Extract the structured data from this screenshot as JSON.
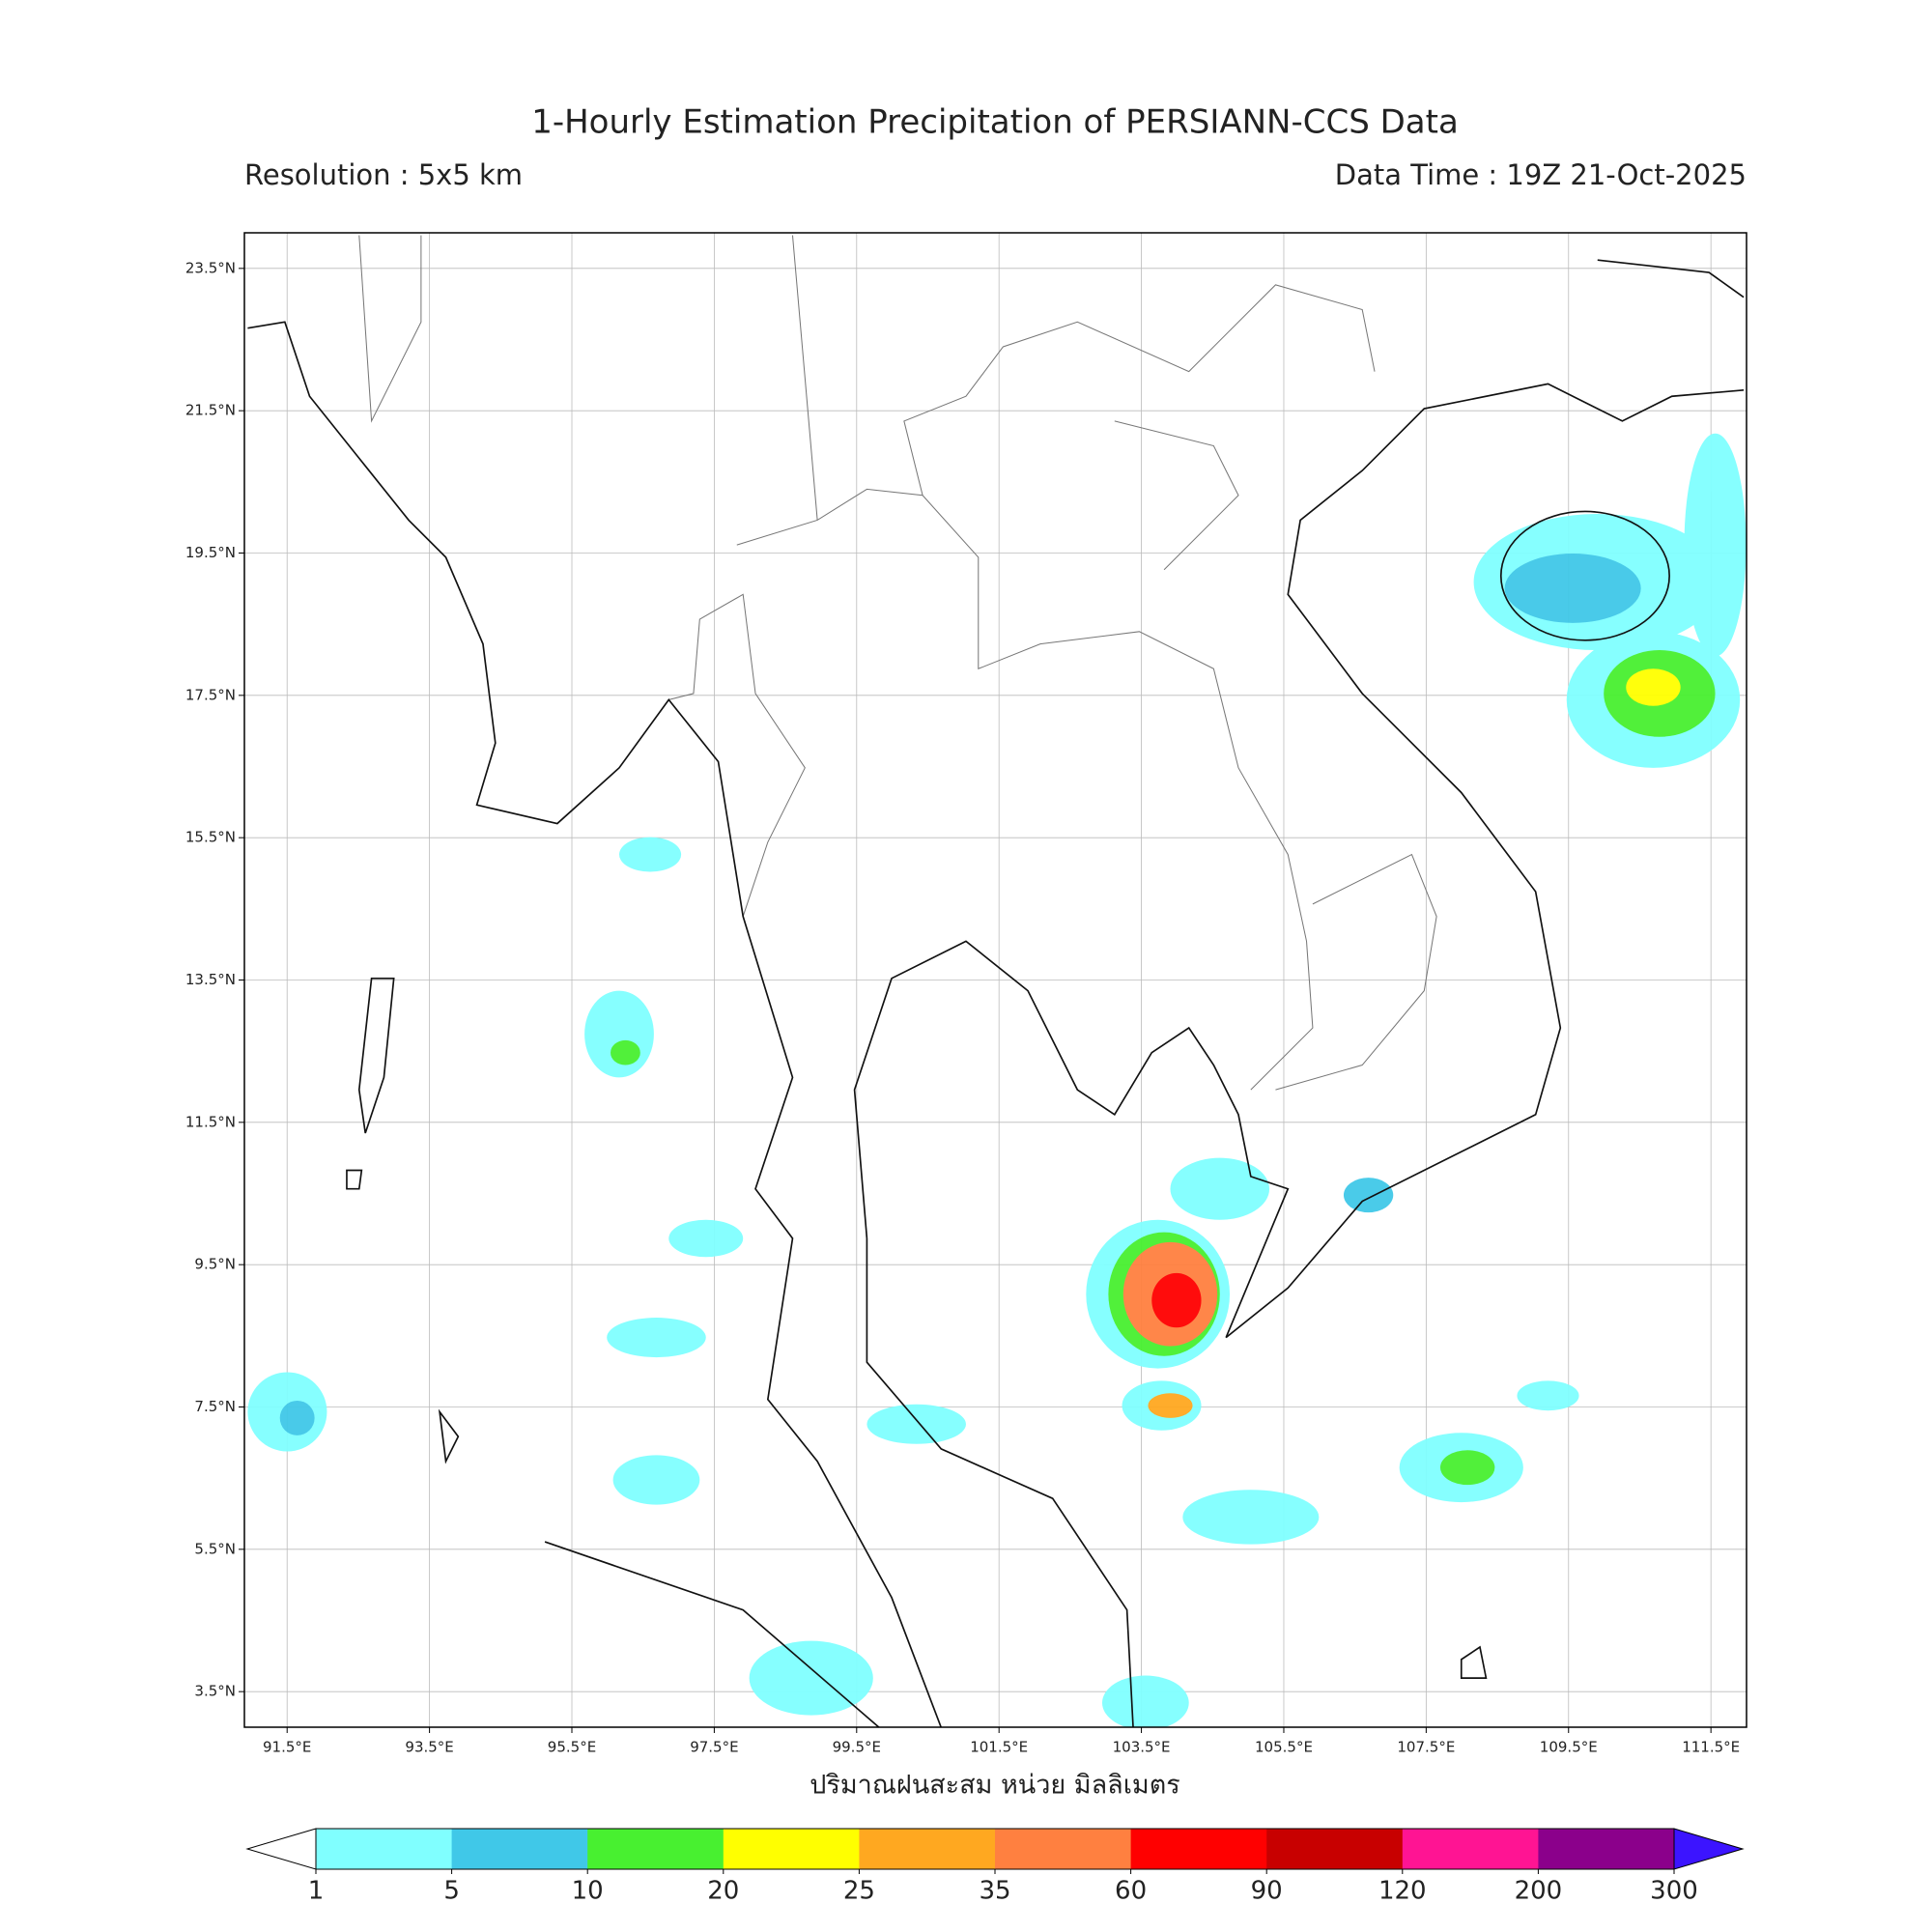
{
  "header": {
    "title": "1-Hourly Estimation Precipitation of PERSIANN-CCS Data",
    "resolution": "Resolution : 5x5 km",
    "data_time": "Data Time : 19Z 21-Oct-2025"
  },
  "map": {
    "xlim": [
      90.9,
      112.0
    ],
    "ylim": [
      3.0,
      24.0
    ],
    "xticks": [
      {
        "value": 91.5,
        "label": "91.5°E"
      },
      {
        "value": 93.5,
        "label": "93.5°E"
      },
      {
        "value": 95.5,
        "label": "95.5°E"
      },
      {
        "value": 97.5,
        "label": "97.5°E"
      },
      {
        "value": 99.5,
        "label": "99.5°E"
      },
      {
        "value": 101.5,
        "label": "101.5°E"
      },
      {
        "value": 103.5,
        "label": "103.5°E"
      },
      {
        "value": 105.5,
        "label": "105.5°E"
      },
      {
        "value": 107.5,
        "label": "107.5°E"
      },
      {
        "value": 109.5,
        "label": "109.5°E"
      },
      {
        "value": 111.5,
        "label": "111.5°E"
      }
    ],
    "yticks": [
      {
        "value": 3.5,
        "label": "3.5°N"
      },
      {
        "value": 5.5,
        "label": "5.5°N"
      },
      {
        "value": 7.5,
        "label": "7.5°N"
      },
      {
        "value": 9.5,
        "label": "9.5°N"
      },
      {
        "value": 11.5,
        "label": "11.5°N"
      },
      {
        "value": 13.5,
        "label": "13.5°N"
      },
      {
        "value": 15.5,
        "label": "15.5°N"
      },
      {
        "value": 17.5,
        "label": "17.5°N"
      },
      {
        "value": 19.5,
        "label": "19.5°N"
      },
      {
        "value": 21.5,
        "label": "21.5°N"
      },
      {
        "value": 23.5,
        "label": "23.5°N"
      }
    ],
    "grid": true
  },
  "colorbar": {
    "label": "ปริมาณฝนสะสม หน่วย มิลลิเมตร",
    "levels": [
      1,
      5,
      10,
      20,
      25,
      35,
      60,
      90,
      120,
      200,
      300
    ],
    "colors": [
      "#80ffff",
      "#40c8e8",
      "#48f030",
      "#ffff00",
      "#ffa820",
      "#ff8040",
      "#ff0000",
      "#c80000",
      "#ff1493",
      "#8b008b"
    ],
    "under_color": "#ffffff",
    "over_color": "#3c14ff"
  }
}
